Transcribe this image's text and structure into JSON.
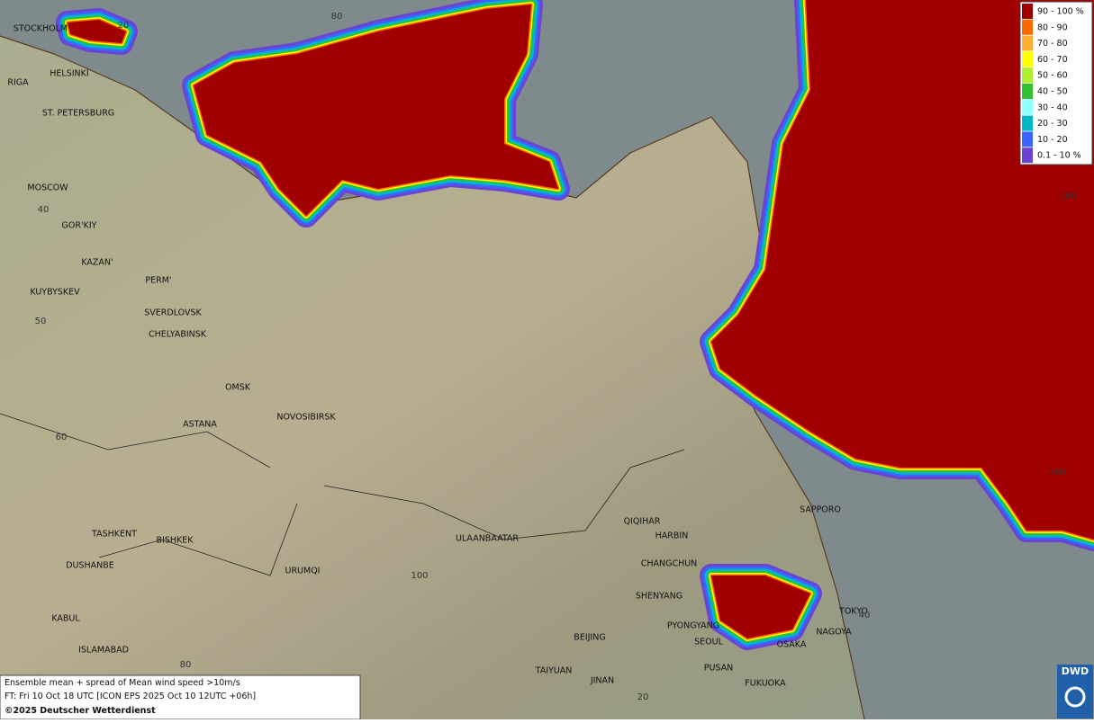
{
  "cities": [
    "STOCKHOLM",
    "HELSINKI",
    "RIGA",
    "ST. PETERSBURG",
    "MOSCOW",
    "GOR'KIY",
    "KAZAN'",
    "PERM'",
    "KUYBYSKEV",
    "SVERDLOVSK",
    "CHELYABINSK",
    "OMSK",
    "ASTANA",
    "NOVOSIBIRSK",
    "TASHKENT",
    "BISHKEK",
    "DUSHANBE",
    "URUMQI",
    "KABUL",
    "ISLAMABAD",
    "ULAANBAATAR",
    "QIQIHAR",
    "HARBIN",
    "CHANGCHUN",
    "SHENYANG",
    "PYONGYANG",
    "SEOUL",
    "BEIJING",
    "TAIYUAN",
    "JINAN",
    "PUSAN",
    "FUKUOKA",
    "SAPPORO",
    "TOKYO",
    "NAGOYA",
    "OSAKA"
  ],
  "grid_labels": [
    "20",
    "80",
    "40",
    "50",
    "60",
    "100",
    "80",
    "20",
    "180",
    "160",
    "40"
  ],
  "legend": [
    {
      "label": "90 - 100 %",
      "color": "#a00000"
    },
    {
      "label": "80 - 90",
      "color": "#ff6a00"
    },
    {
      "label": "70 - 80",
      "color": "#ffb030"
    },
    {
      "label": "60 - 70",
      "color": "#ffff00"
    },
    {
      "label": "50 - 60",
      "color": "#b0ee30"
    },
    {
      "label": "40 - 50",
      "color": "#30c030"
    },
    {
      "label": "30 - 40",
      "color": "#90ffff"
    },
    {
      "label": "20 - 30",
      "color": "#00b8c8"
    },
    {
      "label": "10 - 20",
      "color": "#3a66ff"
    },
    {
      "label": "0.1 - 10 %",
      "color": "#6a44d0"
    }
  ],
  "footer": {
    "line1": "Ensemble mean + spread of Mean wind speed >10m/s",
    "line2": "FT: Fri 10 Oct 18 UTC [ICON EPS 2025 Oct 10 12UTC +06h]",
    "line3": "©2025 Deutscher Wetterdienst"
  },
  "logo": {
    "text": "DWD"
  }
}
